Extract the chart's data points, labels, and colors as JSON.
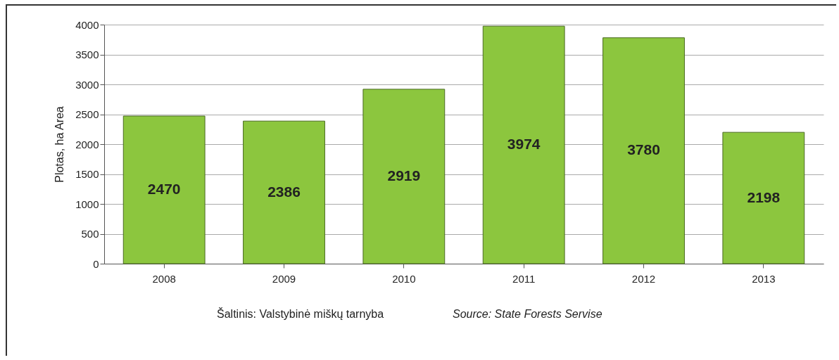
{
  "chart_data": {
    "type": "bar",
    "ylabel": "Plotas, ha  Area",
    "categories": [
      "2008",
      "2009",
      "2010",
      "2011",
      "2012",
      "2013"
    ],
    "values": [
      2470,
      2386,
      2919,
      3974,
      3780,
      2198
    ],
    "color": "#8cc63e",
    "ylim": [
      0,
      4000
    ],
    "yticks": [
      0,
      500,
      1000,
      1500,
      2000,
      2500,
      3000,
      3500,
      4000
    ],
    "grid": "y",
    "data_labels": true,
    "annotations": [
      "Šaltinis: Valstybinė miškų tarnyba",
      "Source: State Forests Servise"
    ]
  }
}
